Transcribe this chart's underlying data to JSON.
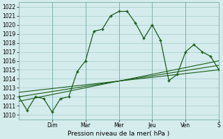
{
  "xlabel": "Pression niveau de la mer( hPa )",
  "ylim": [
    1009.5,
    1022.5
  ],
  "xlim": [
    0,
    12
  ],
  "yticks": [
    1010,
    1011,
    1012,
    1013,
    1014,
    1015,
    1016,
    1017,
    1018,
    1019,
    1020,
    1021,
    1022
  ],
  "background_color": "#d4ecec",
  "grid_color": "#a8cccc",
  "line_color": "#1a5c1a",
  "day_labels": [
    "Dim",
    "Mar",
    "Mer",
    "Jeu",
    "Ven",
    "S"
  ],
  "day_positions": [
    2,
    4,
    6,
    8,
    10,
    12
  ],
  "series1_x": [
    0,
    0.5,
    1.0,
    1.5,
    2.0,
    2.5,
    3.0,
    3.5,
    4.0,
    4.5,
    5.0,
    5.5,
    6.0,
    6.5,
    7.0,
    7.5,
    8.0,
    8.5,
    9.0,
    9.5,
    10.0,
    10.5,
    11.0,
    11.5,
    12.0
  ],
  "series1_y": [
    1012.0,
    1010.5,
    1012.0,
    1011.8,
    1010.3,
    1011.8,
    1012.0,
    1014.8,
    1016.0,
    1019.3,
    1019.5,
    1021.0,
    1021.5,
    1021.5,
    1020.2,
    1018.5,
    1020.0,
    1018.3,
    1013.8,
    1014.5,
    1017.0,
    1017.8,
    1017.0,
    1016.5,
    1015.0
  ],
  "series2_x": [
    0,
    12
  ],
  "series2_y": [
    1012.5,
    1015.0
  ],
  "series3_x": [
    0,
    12
  ],
  "series3_y": [
    1012.0,
    1015.5
  ],
  "series4_x": [
    0,
    12
  ],
  "series4_y": [
    1011.5,
    1016.0
  ]
}
